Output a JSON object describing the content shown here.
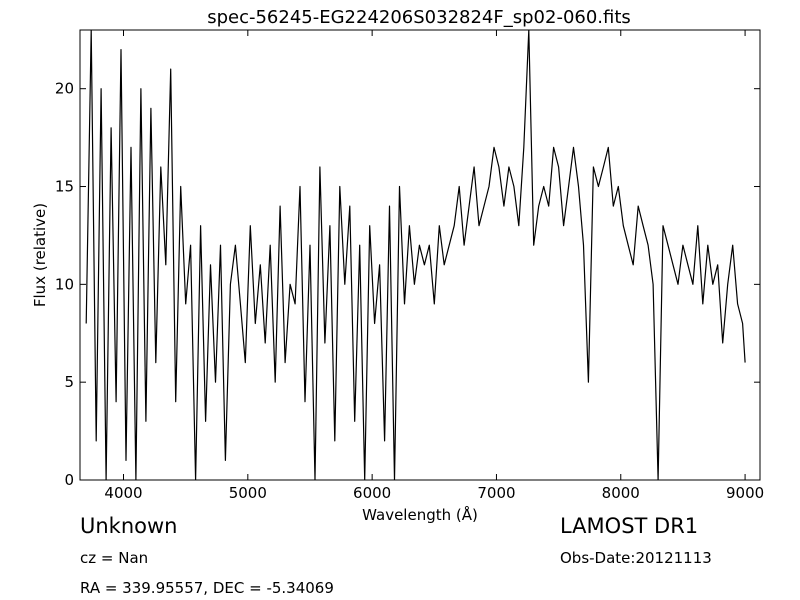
{
  "chart_data": {
    "type": "line",
    "title": "spec-56245-EG224206S032824F_sp02-060.fits",
    "xlabel": "Wavelength (Å)",
    "ylabel": "Flux (relative)",
    "xlim": [
      3650,
      9120
    ],
    "ylim": [
      0,
      23
    ],
    "xticks": [
      4000,
      5000,
      6000,
      7000,
      8000,
      9000
    ],
    "yticks": [
      0,
      5,
      10,
      15,
      20
    ],
    "grid": false,
    "legend": false,
    "line_color": "#000000",
    "series": [
      {
        "x": [
          3700,
          3740,
          3780,
          3820,
          3860,
          3900,
          3940,
          3980,
          4020,
          4060,
          4100,
          4140,
          4180,
          4220,
          4260,
          4300,
          4340,
          4380,
          4420,
          4460,
          4500,
          4540,
          4580,
          4620,
          4660,
          4700,
          4740,
          4780,
          4820,
          4860,
          4900,
          4940,
          4980,
          5020,
          5060,
          5100,
          5140,
          5180,
          5220,
          5260,
          5300,
          5340,
          5380,
          5420,
          5460,
          5500,
          5540,
          5580,
          5620,
          5660,
          5700,
          5740,
          5780,
          5820,
          5860,
          5900,
          5940,
          5980,
          6020,
          6060,
          6100,
          6140,
          6180,
          6220,
          6260,
          6300,
          6340,
          6380,
          6420,
          6460,
          6500,
          6540,
          6580,
          6620,
          6660,
          6700,
          6740,
          6780,
          6820,
          6860,
          6900,
          6940,
          6980,
          7020,
          7060,
          7100,
          7140,
          7180,
          7220,
          7260,
          7300,
          7340,
          7380,
          7420,
          7460,
          7500,
          7540,
          7580,
          7620,
          7660,
          7700,
          7740,
          7780,
          7820,
          7860,
          7900,
          7940,
          7980,
          8020,
          8060,
          8100,
          8140,
          8180,
          8220,
          8260,
          8300,
          8340,
          8380,
          8420,
          8460,
          8500,
          8540,
          8580,
          8620,
          8660,
          8700,
          8740,
          8780,
          8820,
          8860,
          8900,
          8940,
          8980,
          9000
        ],
        "y": [
          8,
          23,
          2,
          20,
          0,
          18,
          4,
          22,
          1,
          17,
          0,
          20,
          3,
          19,
          6,
          16,
          11,
          21,
          4,
          15,
          9,
          12,
          0,
          13,
          3,
          11,
          5,
          12,
          1,
          10,
          12,
          9,
          6,
          13,
          8,
          11,
          7,
          12,
          5,
          14,
          6,
          10,
          9,
          15,
          4,
          12,
          0,
          16,
          7,
          13,
          2,
          15,
          10,
          14,
          3,
          12,
          0,
          13,
          8,
          11,
          2,
          14,
          0,
          15,
          9,
          13,
          10,
          12,
          11,
          12,
          9,
          13,
          11,
          12,
          13,
          15,
          12,
          14,
          16,
          13,
          14,
          15,
          17,
          16,
          14,
          16,
          15,
          13,
          17,
          23,
          12,
          14,
          15,
          14,
          17,
          16,
          13,
          15,
          17,
          15,
          12,
          5,
          16,
          15,
          16,
          17,
          14,
          15,
          13,
          12,
          11,
          14,
          13,
          12,
          10,
          0,
          13,
          12,
          11,
          10,
          12,
          11,
          10,
          13,
          9,
          12,
          10,
          11,
          7,
          10,
          12,
          9,
          8,
          6
        ]
      }
    ]
  },
  "info": {
    "object_name": "Unknown",
    "cz_text": "cz = Nan",
    "radec_text": "RA = 339.95557, DEC = -5.34069",
    "survey": "LAMOST DR1",
    "obs_date": "Obs-Date:20121113"
  }
}
